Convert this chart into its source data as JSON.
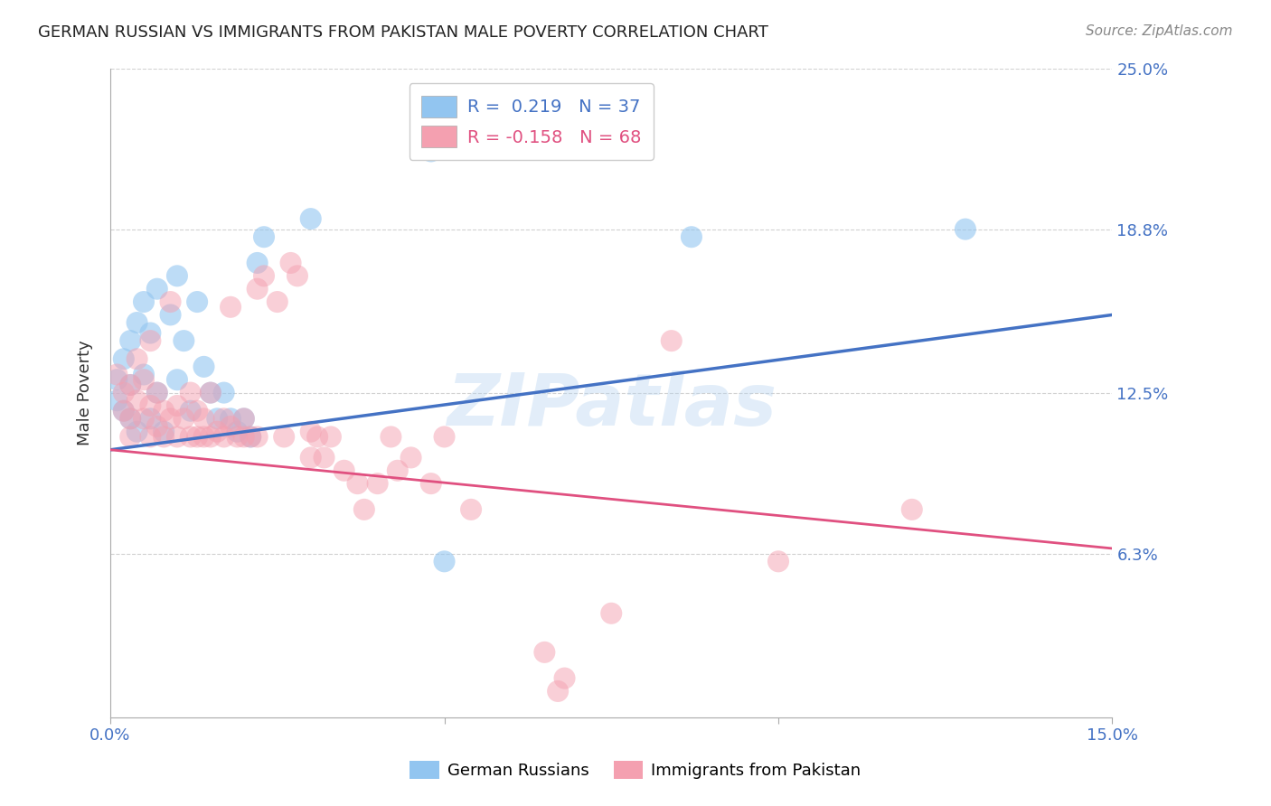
{
  "title": "GERMAN RUSSIAN VS IMMIGRANTS FROM PAKISTAN MALE POVERTY CORRELATION CHART",
  "source": "Source: ZipAtlas.com",
  "ylabel_label": "Male Poverty",
  "x_min": 0.0,
  "x_max": 0.15,
  "y_min": 0.0,
  "y_max": 0.25,
  "y_tick_labels_right": [
    "25.0%",
    "18.8%",
    "12.5%",
    "6.3%"
  ],
  "y_tick_vals_right": [
    0.25,
    0.188,
    0.125,
    0.063
  ],
  "legend_line1": "R =  0.219   N = 37",
  "legend_line2": "R = -0.158   N = 68",
  "color_blue": "#92C5F0",
  "color_pink": "#F4A0B0",
  "line_color_blue": "#4472C4",
  "line_color_pink": "#E05080",
  "watermark": "ZIPatlas",
  "blue_scatter": [
    [
      0.001,
      0.13
    ],
    [
      0.001,
      0.122
    ],
    [
      0.002,
      0.138
    ],
    [
      0.002,
      0.118
    ],
    [
      0.003,
      0.145
    ],
    [
      0.003,
      0.128
    ],
    [
      0.003,
      0.115
    ],
    [
      0.004,
      0.152
    ],
    [
      0.004,
      0.11
    ],
    [
      0.005,
      0.16
    ],
    [
      0.005,
      0.132
    ],
    [
      0.006,
      0.148
    ],
    [
      0.006,
      0.115
    ],
    [
      0.007,
      0.165
    ],
    [
      0.007,
      0.125
    ],
    [
      0.008,
      0.11
    ],
    [
      0.009,
      0.155
    ],
    [
      0.01,
      0.17
    ],
    [
      0.01,
      0.13
    ],
    [
      0.011,
      0.145
    ],
    [
      0.012,
      0.118
    ],
    [
      0.013,
      0.16
    ],
    [
      0.014,
      0.135
    ],
    [
      0.015,
      0.125
    ],
    [
      0.016,
      0.115
    ],
    [
      0.017,
      0.125
    ],
    [
      0.018,
      0.115
    ],
    [
      0.019,
      0.11
    ],
    [
      0.02,
      0.115
    ],
    [
      0.021,
      0.108
    ],
    [
      0.022,
      0.175
    ],
    [
      0.023,
      0.185
    ],
    [
      0.03,
      0.192
    ],
    [
      0.048,
      0.218
    ],
    [
      0.05,
      0.06
    ],
    [
      0.087,
      0.185
    ],
    [
      0.128,
      0.188
    ]
  ],
  "pink_scatter": [
    [
      0.001,
      0.132
    ],
    [
      0.002,
      0.125
    ],
    [
      0.002,
      0.118
    ],
    [
      0.003,
      0.128
    ],
    [
      0.003,
      0.115
    ],
    [
      0.003,
      0.108
    ],
    [
      0.004,
      0.138
    ],
    [
      0.004,
      0.122
    ],
    [
      0.005,
      0.13
    ],
    [
      0.005,
      0.115
    ],
    [
      0.006,
      0.145
    ],
    [
      0.006,
      0.12
    ],
    [
      0.006,
      0.108
    ],
    [
      0.007,
      0.125
    ],
    [
      0.007,
      0.112
    ],
    [
      0.008,
      0.118
    ],
    [
      0.008,
      0.108
    ],
    [
      0.009,
      0.16
    ],
    [
      0.009,
      0.115
    ],
    [
      0.01,
      0.12
    ],
    [
      0.01,
      0.108
    ],
    [
      0.011,
      0.115
    ],
    [
      0.012,
      0.125
    ],
    [
      0.012,
      0.108
    ],
    [
      0.013,
      0.118
    ],
    [
      0.013,
      0.108
    ],
    [
      0.014,
      0.115
    ],
    [
      0.014,
      0.108
    ],
    [
      0.015,
      0.125
    ],
    [
      0.015,
      0.108
    ],
    [
      0.016,
      0.11
    ],
    [
      0.017,
      0.115
    ],
    [
      0.017,
      0.108
    ],
    [
      0.018,
      0.158
    ],
    [
      0.018,
      0.112
    ],
    [
      0.019,
      0.108
    ],
    [
      0.02,
      0.115
    ],
    [
      0.02,
      0.108
    ],
    [
      0.021,
      0.108
    ],
    [
      0.022,
      0.165
    ],
    [
      0.022,
      0.108
    ],
    [
      0.023,
      0.17
    ],
    [
      0.025,
      0.16
    ],
    [
      0.026,
      0.108
    ],
    [
      0.027,
      0.175
    ],
    [
      0.028,
      0.17
    ],
    [
      0.03,
      0.11
    ],
    [
      0.03,
      0.1
    ],
    [
      0.031,
      0.108
    ],
    [
      0.032,
      0.1
    ],
    [
      0.033,
      0.108
    ],
    [
      0.035,
      0.095
    ],
    [
      0.037,
      0.09
    ],
    [
      0.038,
      0.08
    ],
    [
      0.04,
      0.09
    ],
    [
      0.042,
      0.108
    ],
    [
      0.043,
      0.095
    ],
    [
      0.045,
      0.1
    ],
    [
      0.048,
      0.09
    ],
    [
      0.05,
      0.108
    ],
    [
      0.054,
      0.08
    ],
    [
      0.065,
      0.025
    ],
    [
      0.067,
      0.01
    ],
    [
      0.068,
      0.015
    ],
    [
      0.075,
      0.04
    ],
    [
      0.084,
      0.145
    ],
    [
      0.1,
      0.06
    ],
    [
      0.12,
      0.08
    ]
  ]
}
